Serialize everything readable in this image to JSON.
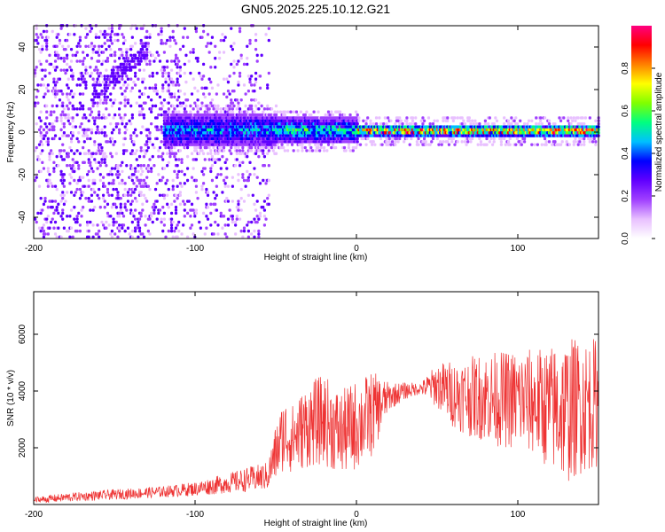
{
  "title": "GN05.2025.225.10.12.G21",
  "chart_data": [
    {
      "type": "heatmap",
      "xlabel": "Height of straight line (km)",
      "ylabel": "Frequency (Hz)",
      "xlim": [
        -200,
        150
      ],
      "ylim": [
        -50,
        50
      ],
      "xticks": [
        -200,
        -100,
        0,
        100
      ],
      "yticks": [
        -40,
        -20,
        0,
        20,
        40
      ],
      "colorbar": {
        "label": "Normalized spectral amplitude",
        "range": [
          0,
          1
        ],
        "ticks": [
          "0.0",
          "0.2",
          "0.4",
          "0.6",
          "0.8"
        ],
        "colors": [
          "#ffffff",
          "#e8c0ff",
          "#a040ff",
          "#6000ff",
          "#0000ff",
          "#00c0ff",
          "#00ff80",
          "#80ff00",
          "#ffff00",
          "#ff8000",
          "#ff0000",
          "#ff0080"
        ]
      },
      "features": {
        "central_band_freq_hz": 0,
        "band_halfwidth_hz": [
          8,
          6,
          3
        ],
        "noise_region_km": [
          -200,
          -55
        ],
        "band_start_km": -120
      }
    },
    {
      "type": "line",
      "xlabel": "Height of straight line (km)",
      "ylabel": "SNR (10 * v/v)",
      "xlim": [
        -200,
        150
      ],
      "ylim": [
        0,
        7500
      ],
      "xticks": [
        -200,
        -100,
        0,
        100
      ],
      "yticks": [
        2000,
        4000,
        6000
      ],
      "color": "#ee3333",
      "series": [
        {
          "envelope_x": [
            -200,
            -180,
            -150,
            -120,
            -100,
            -80,
            -65,
            -55,
            -50,
            -45,
            -40,
            -30,
            -20,
            -10,
            0,
            10,
            20,
            30,
            40,
            50,
            60,
            70,
            80,
            90,
            100,
            110,
            120,
            130,
            140,
            150
          ],
          "envelope_mean": [
            150,
            250,
            350,
            450,
            550,
            750,
            900,
            1000,
            1800,
            2500,
            2300,
            2800,
            3000,
            2500,
            2800,
            3200,
            3800,
            4000,
            4100,
            4200,
            3900,
            3800,
            3800,
            3700,
            3700,
            3600,
            3400,
            3300,
            3500,
            3600
          ],
          "envelope_amp": [
            120,
            150,
            180,
            200,
            250,
            350,
            450,
            500,
            1000,
            1300,
            1200,
            1500,
            1600,
            1500,
            1600,
            1500,
            500,
            300,
            200,
            800,
            1200,
            1400,
            1600,
            1700,
            1800,
            1900,
            2200,
            2600,
            2400,
            2300
          ]
        }
      ]
    }
  ]
}
